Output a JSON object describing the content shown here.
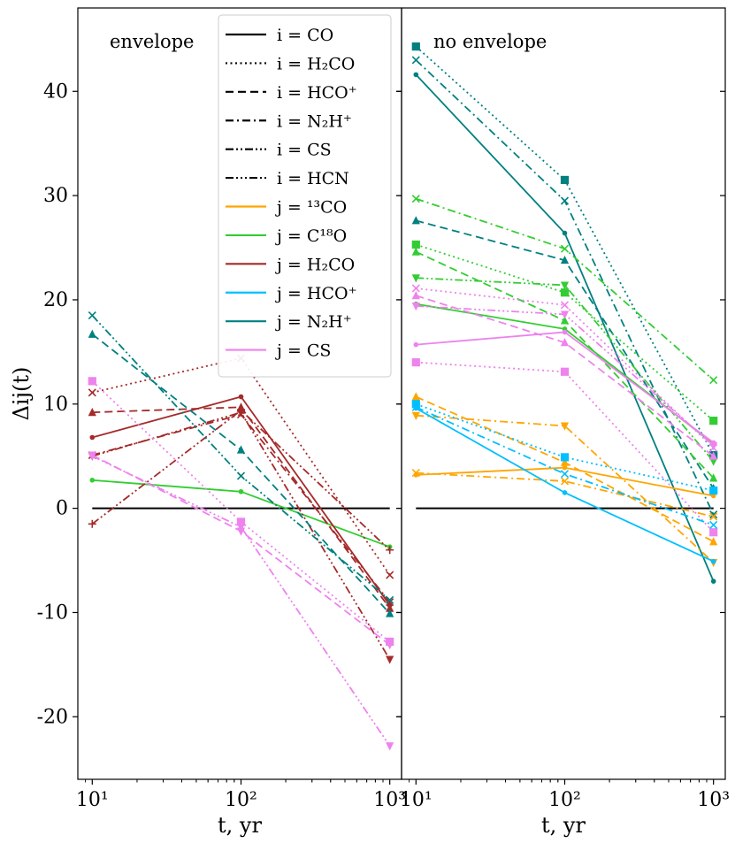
{
  "chart_data": {
    "type": "line",
    "ylabel": "Δij(t)",
    "xlabel": "t, yr",
    "xscale": "log",
    "xlim": [
      8,
      1200
    ],
    "ylim": [
      -26,
      48
    ],
    "y_ticks": [
      -20,
      -10,
      0,
      10,
      20,
      30,
      40
    ],
    "x_ticks": [
      {
        "value": 10,
        "label": "10¹"
      },
      {
        "value": 100,
        "label": "10²"
      },
      {
        "value": 1000,
        "label": "10³"
      }
    ],
    "colors": {
      "13CO": "#FFA500",
      "C18O": "#32CD32",
      "H2CO": "#A52A2A",
      "HCO+": "#00BFFF",
      "N2H+": "#008080",
      "CS": "#EE82EE",
      "ref": "#000000"
    },
    "panels": [
      {
        "label": "envelope",
        "series": [
          {
            "i": "CO",
            "j": "ref",
            "marker": "none",
            "x": [
              10,
              1000
            ],
            "y": [
              0,
              0
            ]
          },
          {
            "i": "CO",
            "j": "C18O",
            "marker": "circle",
            "x": [
              10,
              100,
              1000
            ],
            "y": [
              2.7,
              1.6,
              -3.7
            ]
          },
          {
            "i": "CO",
            "j": "H2CO",
            "marker": "circle",
            "x": [
              10,
              100,
              1000
            ],
            "y": [
              6.8,
              10.7,
              -9.3
            ]
          },
          {
            "i": "H2CO",
            "j": "H2CO",
            "marker": "x",
            "x": [
              10,
              100,
              1000
            ],
            "y": [
              11.1,
              14.4,
              -6.4
            ]
          },
          {
            "i": "HCO+",
            "j": "H2CO",
            "marker": "triangle-up",
            "x": [
              10,
              100,
              1000
            ],
            "y": [
              9.2,
              9.7,
              -9.6
            ]
          },
          {
            "i": "N2H+",
            "j": "H2CO",
            "marker": "x",
            "x": [
              10,
              100,
              1000
            ],
            "y": [
              5.1,
              9.0,
              -9.0
            ]
          },
          {
            "i": "CS",
            "j": "H2CO",
            "marker": "plus",
            "x": [
              10,
              100,
              1000
            ],
            "y": [
              -1.5,
              9.4,
              -4.0
            ]
          },
          {
            "i": "HCN",
            "j": "H2CO",
            "marker": "triangle-down",
            "x": [
              10,
              100,
              1000
            ],
            "y": [
              5.0,
              9.2,
              -14.5
            ]
          },
          {
            "i": "HCO+",
            "j": "N2H+",
            "marker": "triangle-up",
            "x": [
              10,
              100,
              1000
            ],
            "y": [
              16.7,
              5.6,
              -10.1
            ]
          },
          {
            "i": "CS",
            "j": "N2H+",
            "marker": "x",
            "x": [
              10,
              100,
              1000
            ],
            "y": [
              18.5,
              3.1,
              -8.8
            ]
          },
          {
            "i": "H2CO",
            "j": "CS",
            "marker": "square",
            "x": [
              10,
              100,
              1000
            ],
            "y": [
              12.2,
              -1.3,
              -12.8
            ]
          },
          {
            "i": "HCO+",
            "j": "CS",
            "marker": "triangle-down",
            "x": [
              10,
              100,
              1000
            ],
            "y": [
              5.1,
              -2.2,
              -13.1
            ]
          },
          {
            "i": "HCN",
            "j": "CS",
            "marker": "triangle-down",
            "x": [
              10,
              100,
              1000
            ],
            "y": [
              5.0,
              -1.8,
              -22.8
            ]
          }
        ]
      },
      {
        "label": "no envelope",
        "series": [
          {
            "i": "CO",
            "j": "ref",
            "marker": "none",
            "x": [
              10,
              1000
            ],
            "y": [
              0,
              0
            ]
          },
          {
            "i": "CO",
            "j": "N2H+",
            "marker": "circle",
            "x": [
              10,
              100,
              1000
            ],
            "y": [
              41.6,
              26.4,
              -7.0
            ]
          },
          {
            "i": "H2CO",
            "j": "N2H+",
            "marker": "square",
            "x": [
              10,
              100,
              1000
            ],
            "y": [
              44.3,
              31.5,
              5.1
            ]
          },
          {
            "i": "N2H+",
            "j": "N2H+",
            "marker": "x",
            "x": [
              10,
              100,
              1000
            ],
            "y": [
              43.0,
              29.5,
              -0.6
            ]
          },
          {
            "i": "HCO+",
            "j": "N2H+",
            "marker": "triangle-up",
            "x": [
              10,
              100,
              1000
            ],
            "y": [
              27.6,
              23.8,
              1.9
            ]
          },
          {
            "i": "N2H+",
            "j": "C18O",
            "marker": "x",
            "x": [
              10,
              100,
              1000
            ],
            "y": [
              29.7,
              24.9,
              12.3
            ]
          },
          {
            "i": "H2CO",
            "j": "C18O",
            "marker": "square",
            "x": [
              10,
              100,
              1000
            ],
            "y": [
              25.3,
              20.7,
              8.4
            ]
          },
          {
            "i": "HCO+",
            "j": "C18O",
            "marker": "triangle-up",
            "x": [
              10,
              100,
              1000
            ],
            "y": [
              24.6,
              18.0,
              2.9
            ]
          },
          {
            "i": "CS",
            "j": "C18O",
            "marker": "triangle-down",
            "x": [
              10,
              100,
              1000
            ],
            "y": [
              22.1,
              21.4,
              4.5
            ]
          },
          {
            "i": "CO",
            "j": "C18O",
            "marker": "circle",
            "x": [
              10,
              100,
              1000
            ],
            "y": [
              19.6,
              17.2,
              6.2
            ]
          },
          {
            "i": "H2CO",
            "j": "CS",
            "marker": "x",
            "x": [
              10,
              100,
              1000
            ],
            "y": [
              21.1,
              19.5,
              5.8
            ]
          },
          {
            "i": "HCO+",
            "j": "CS",
            "marker": "triangle-up",
            "x": [
              10,
              100,
              1000
            ],
            "y": [
              20.4,
              15.9,
              5.0
            ]
          },
          {
            "i": "HCN",
            "j": "CS",
            "marker": "triangle-down",
            "x": [
              10,
              100,
              1000
            ],
            "y": [
              19.4,
              18.6,
              6.0
            ]
          },
          {
            "i": "CO",
            "j": "CS",
            "marker": "circle",
            "x": [
              10,
              100,
              1000
            ],
            "y": [
              15.7,
              16.9,
              6.3
            ]
          },
          {
            "i": "H2CO",
            "j": "CS",
            "marker": "square",
            "x": [
              10,
              100,
              1000
            ],
            "y": [
              14.0,
              13.1,
              -2.3
            ]
          },
          {
            "i": "HCO+",
            "j": "13CO",
            "marker": "triangle-up",
            "x": [
              10,
              100,
              1000
            ],
            "y": [
              10.7,
              4.4,
              -3.2
            ]
          },
          {
            "i": "N2H+",
            "j": "13CO",
            "marker": "triangle-down",
            "x": [
              10,
              100,
              1000
            ],
            "y": [
              8.9,
              7.9,
              -5.2
            ]
          },
          {
            "i": "CO",
            "j": "13CO",
            "marker": "circle",
            "x": [
              10,
              100,
              1000
            ],
            "y": [
              3.2,
              3.9,
              1.2
            ]
          },
          {
            "i": "N2H+",
            "j": "13CO",
            "marker": "x",
            "x": [
              10,
              100,
              1000
            ],
            "y": [
              3.4,
              2.6,
              -0.8
            ]
          },
          {
            "i": "H2CO",
            "j": "HCO+",
            "marker": "square",
            "x": [
              10,
              100,
              1000
            ],
            "y": [
              10.0,
              4.9,
              1.7
            ]
          },
          {
            "i": "N2H+",
            "j": "HCO+",
            "marker": "x",
            "x": [
              10,
              100,
              1000
            ],
            "y": [
              9.7,
              3.3,
              -1.6
            ]
          },
          {
            "i": "CO",
            "j": "HCO+",
            "marker": "circle",
            "x": [
              10,
              100,
              1000
            ],
            "y": [
              9.6,
              1.5,
              -5.1
            ]
          }
        ]
      }
    ],
    "legend": {
      "position": "top-left-of-left-panel",
      "entries": [
        {
          "text": "i = CO",
          "color": "#000000",
          "dash": "solid"
        },
        {
          "text": "i = H₂CO",
          "color": "#000000",
          "dash": "dotted"
        },
        {
          "text": "i = HCO⁺",
          "color": "#000000",
          "dash": "dashed"
        },
        {
          "text": "i = N₂H⁺",
          "color": "#000000",
          "dash": "dashdot"
        },
        {
          "text": "i = CS",
          "color": "#000000",
          "dash": "dashdotdot"
        },
        {
          "text": "i = HCN",
          "color": "#000000",
          "dash": "dashdotdotdot"
        },
        {
          "text": "j = ¹³CO",
          "color": "#FFA500",
          "dash": "solid"
        },
        {
          "text": "j = C¹⁸O",
          "color": "#32CD32",
          "dash": "solid"
        },
        {
          "text": "j = H₂CO",
          "color": "#A52A2A",
          "dash": "solid"
        },
        {
          "text": "j = HCO⁺",
          "color": "#00BFFF",
          "dash": "solid"
        },
        {
          "text": "j = N₂H⁺",
          "color": "#008080",
          "dash": "solid"
        },
        {
          "text": "j = CS",
          "color": "#EE82EE",
          "dash": "solid"
        }
      ]
    }
  }
}
